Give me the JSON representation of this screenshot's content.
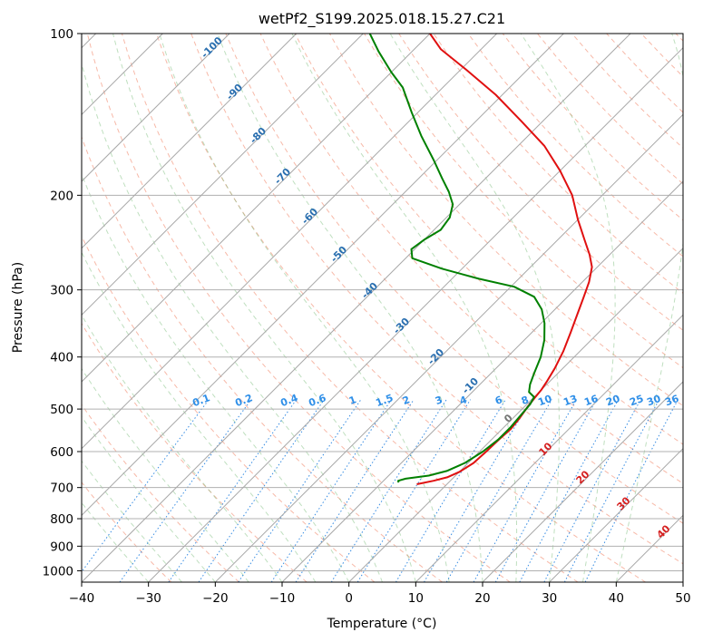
{
  "chart_data": {
    "type": "line",
    "subtype": "skew-T log-P diagram",
    "title": "wetPf2_S199.2025.018.15.27.C21",
    "xlabel": "Temperature (°C)",
    "ylabel": "Pressure (hPa)",
    "xlim": [
      -40,
      50
    ],
    "ylim": [
      1050,
      100
    ],
    "y_scale": "log",
    "x_ticks": [
      -40,
      -30,
      -20,
      -10,
      0,
      10,
      20,
      30,
      40,
      50
    ],
    "y_ticks": [
      100,
      200,
      300,
      400,
      500,
      600,
      700,
      800,
      900,
      1000
    ],
    "grid": true,
    "series": [
      {
        "color": "#e01010",
        "points": [
          [
            -4.5,
            690
          ],
          [
            -2.5,
            680
          ],
          [
            -1.0,
            670
          ],
          [
            0.0,
            655
          ],
          [
            0.8,
            630
          ],
          [
            1.0,
            600
          ],
          [
            1.1,
            570
          ],
          [
            1.3,
            545
          ],
          [
            1.0,
            520
          ],
          [
            0.5,
            495
          ],
          [
            0.2,
            475
          ],
          [
            0.0,
            460
          ],
          [
            -0.4,
            445
          ],
          [
            -1.2,
            420
          ],
          [
            -2.5,
            390
          ],
          [
            -4.2,
            360
          ],
          [
            -5.8,
            335
          ],
          [
            -7.5,
            310
          ],
          [
            -9.0,
            290
          ],
          [
            -10.8,
            272
          ],
          [
            -13.0,
            258
          ],
          [
            -16.0,
            242
          ],
          [
            -20.0,
            222
          ],
          [
            -24.5,
            200
          ],
          [
            -30.0,
            180
          ],
          [
            -36.0,
            162
          ],
          [
            -43.0,
            146
          ],
          [
            -51.0,
            130
          ],
          [
            -59.0,
            117
          ],
          [
            -66.0,
            107
          ],
          [
            -70.0,
            100
          ]
        ]
      },
      {
        "color": "#008000",
        "points": [
          [
            -7.5,
            685
          ],
          [
            -7.8,
            680
          ],
          [
            -7.0,
            674
          ],
          [
            -4.0,
            665
          ],
          [
            -2.0,
            652
          ],
          [
            -0.5,
            630
          ],
          [
            0.5,
            600
          ],
          [
            1.0,
            570
          ],
          [
            1.0,
            540
          ],
          [
            0.7,
            510
          ],
          [
            0.5,
            490
          ],
          [
            0.0,
            475
          ],
          [
            -1.5,
            465
          ],
          [
            -2.5,
            450
          ],
          [
            -3.5,
            430
          ],
          [
            -5.0,
            400
          ],
          [
            -7.0,
            372
          ],
          [
            -9.5,
            346
          ],
          [
            -12.0,
            326
          ],
          [
            -15.0,
            309
          ],
          [
            -19.5,
            296
          ],
          [
            -26.0,
            286
          ],
          [
            -33.0,
            274
          ],
          [
            -39.0,
            262
          ],
          [
            -40.5,
            252
          ],
          [
            -40.0,
            242
          ],
          [
            -39.0,
            232
          ],
          [
            -39.5,
            220
          ],
          [
            -41.0,
            208
          ],
          [
            -43.5,
            197
          ],
          [
            -46.5,
            186
          ],
          [
            -50.5,
            172
          ],
          [
            -56.0,
            155
          ],
          [
            -61.0,
            140
          ],
          [
            -66.0,
            126
          ],
          [
            -70.0,
            118
          ],
          [
            -75.0,
            108
          ],
          [
            -79.0,
            100
          ]
        ]
      }
    ],
    "isotherm_labels": [
      "-100",
      "-90",
      "-80",
      "-70",
      "-60",
      "-50",
      "-40",
      "-30",
      "-20",
      "-10"
    ],
    "mixing_ratio_labels": [
      "0.1",
      "0.2",
      "0.4",
      "0.6",
      "1",
      "1.5",
      "2",
      "3",
      "4",
      "6",
      "8",
      "10",
      "13",
      "16",
      "20",
      "25",
      "30",
      "36"
    ],
    "moist_adiabat_labels": [
      "0",
      "10",
      "20",
      "30",
      "40"
    ]
  }
}
